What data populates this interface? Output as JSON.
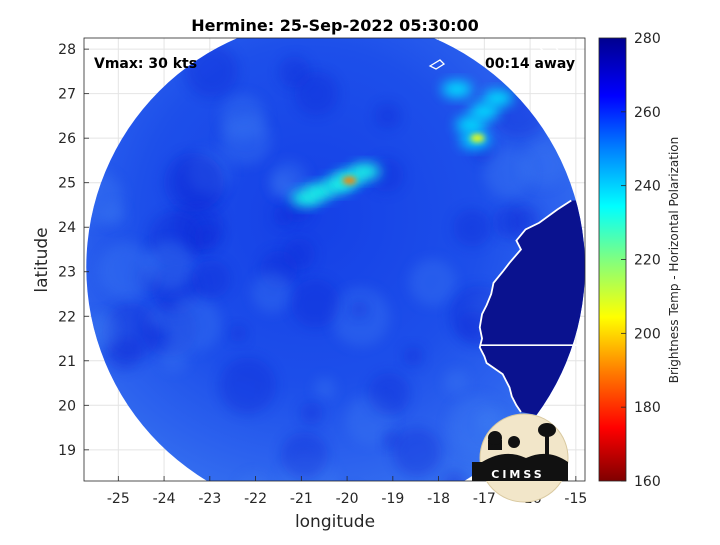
{
  "chart_data": {
    "type": "heatmap",
    "title": "Hermine: 25-Sep-2022 05:30:00",
    "xlabel": "longitude",
    "ylabel": "latitude",
    "xlim": [
      -25.75,
      -14.8
    ],
    "ylim": [
      18.3,
      28.25
    ],
    "x_ticks": [
      -25,
      -24,
      -23,
      -22,
      -21,
      -20,
      -19,
      -18,
      -17,
      -16,
      -15
    ],
    "y_ticks": [
      19,
      20,
      21,
      22,
      23,
      24,
      25,
      26,
      27,
      28
    ],
    "grid": true,
    "annotations": {
      "vmax": "Vmax: 30 kts",
      "time_offset": "00:14 away"
    },
    "swath": {
      "shape": "circle",
      "center": [
        -20.25,
        23.1
      ],
      "radius_deg": 5.45
    },
    "colorbar": {
      "label": "Brightness Temp - Horizontal Polarization",
      "range": [
        160,
        280
      ],
      "ticks": [
        160,
        180,
        200,
        220,
        240,
        260,
        280
      ],
      "colormap": [
        "#7f0000",
        "#ff0000",
        "#ff8000",
        "#ffff00",
        "#80ff80",
        "#00ffff",
        "#0080ff",
        "#0000ff",
        "#00008f"
      ]
    },
    "features": [
      {
        "name": "convective band",
        "points": [
          [
            -20.9,
            24.65
          ],
          [
            -20.6,
            24.8
          ],
          [
            -20.2,
            24.95
          ],
          [
            -19.95,
            25.1
          ],
          [
            -19.6,
            25.25
          ]
        ],
        "tb": 232
      },
      {
        "name": "core",
        "points": [
          [
            -19.95,
            25.05
          ]
        ],
        "tb": 190
      },
      {
        "name": "northeast cells",
        "points": [
          [
            -17.3,
            26.3
          ],
          [
            -17.0,
            26.6
          ],
          [
            -16.7,
            26.9
          ],
          [
            -17.6,
            27.1
          ],
          [
            -17.2,
            25.95
          ]
        ],
        "tb": 238
      },
      {
        "name": "northeast hot spot",
        "points": [
          [
            -17.15,
            26.0
          ]
        ],
        "tb": 205
      }
    ],
    "coastline_lonlat": [
      [
        -15.1,
        24.6
      ],
      [
        -15.4,
        24.4
      ],
      [
        -15.8,
        24.1
      ],
      [
        -16.1,
        23.95
      ],
      [
        -16.3,
        23.7
      ],
      [
        -16.2,
        23.5
      ],
      [
        -16.45,
        23.2
      ],
      [
        -16.6,
        23.0
      ],
      [
        -16.8,
        22.75
      ],
      [
        -16.85,
        22.5
      ],
      [
        -16.95,
        22.25
      ],
      [
        -17.05,
        22.05
      ],
      [
        -17.1,
        21.75
      ],
      [
        -17.05,
        21.5
      ],
      [
        -17.1,
        21.3
      ],
      [
        -17.0,
        21.1
      ],
      [
        -16.95,
        20.95
      ],
      [
        -16.6,
        20.7
      ],
      [
        -16.45,
        20.4
      ],
      [
        -16.4,
        20.2
      ],
      [
        -16.3,
        20.0
      ],
      [
        -16.2,
        19.85
      ]
    ],
    "border_lat": 21.35,
    "logo": "CIMSS"
  }
}
